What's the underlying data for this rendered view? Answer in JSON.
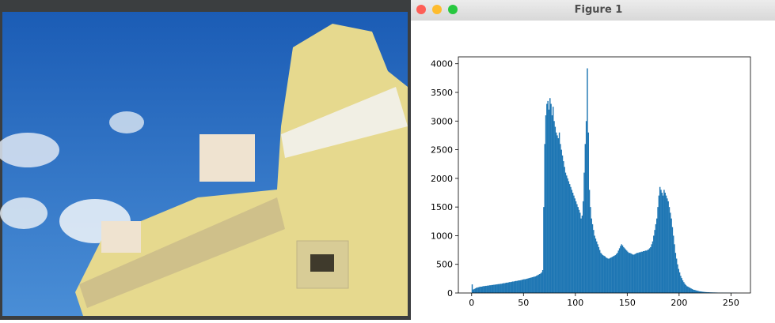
{
  "window": {
    "title": "Figure 1"
  },
  "chart_data": {
    "type": "histogram",
    "color": "#1f77b4",
    "bins": [
      0,
      1,
      2,
      3,
      4,
      5,
      6,
      7,
      8,
      9,
      10,
      11,
      12,
      13,
      14,
      15,
      16,
      17,
      18,
      19,
      20,
      21,
      22,
      23,
      24,
      25,
      26,
      27,
      28,
      29,
      30,
      31,
      32,
      33,
      34,
      35,
      36,
      37,
      38,
      39,
      40,
      41,
      42,
      43,
      44,
      45,
      46,
      47,
      48,
      49,
      50,
      51,
      52,
      53,
      54,
      55,
      56,
      57,
      58,
      59,
      60,
      61,
      62,
      63,
      64,
      65,
      66,
      67,
      68,
      69,
      70,
      71,
      72,
      73,
      74,
      75,
      76,
      77,
      78,
      79,
      80,
      81,
      82,
      83,
      84,
      85,
      86,
      87,
      88,
      89,
      90,
      91,
      92,
      93,
      94,
      95,
      96,
      97,
      98,
      99,
      100,
      101,
      102,
      103,
      104,
      105,
      106,
      107,
      108,
      109,
      110,
      111,
      112,
      113,
      114,
      115,
      116,
      117,
      118,
      119,
      120,
      121,
      122,
      123,
      124,
      125,
      126,
      127,
      128,
      129,
      130,
      131,
      132,
      133,
      134,
      135,
      136,
      137,
      138,
      139,
      140,
      141,
      142,
      143,
      144,
      145,
      146,
      147,
      148,
      149,
      150,
      151,
      152,
      153,
      154,
      155,
      156,
      157,
      158,
      159,
      160,
      161,
      162,
      163,
      164,
      165,
      166,
      167,
      168,
      169,
      170,
      171,
      172,
      173,
      174,
      175,
      176,
      177,
      178,
      179,
      180,
      181,
      182,
      183,
      184,
      185,
      186,
      187,
      188,
      189,
      190,
      191,
      192,
      193,
      194,
      195,
      196,
      197,
      198,
      199,
      200,
      201,
      202,
      203,
      204,
      205,
      206,
      207,
      208,
      209,
      210,
      211,
      212,
      213,
      214,
      215,
      216,
      217,
      218,
      219,
      220,
      221,
      222,
      223,
      224,
      225,
      226,
      227,
      228,
      229,
      230,
      231,
      232,
      233,
      234,
      235,
      236,
      237,
      238,
      239,
      240,
      241,
      242,
      243,
      244,
      245,
      246,
      247,
      248,
      249,
      250,
      251,
      252,
      253,
      254,
      255,
      256
    ],
    "values": [
      150,
      60,
      70,
      80,
      90,
      95,
      100,
      105,
      110,
      110,
      115,
      120,
      120,
      125,
      125,
      130,
      130,
      135,
      135,
      140,
      140,
      145,
      145,
      150,
      150,
      155,
      155,
      160,
      160,
      165,
      170,
      170,
      175,
      180,
      180,
      185,
      190,
      190,
      195,
      200,
      200,
      205,
      210,
      210,
      215,
      220,
      220,
      225,
      230,
      235,
      240,
      240,
      245,
      250,
      255,
      260,
      265,
      270,
      275,
      280,
      285,
      290,
      300,
      310,
      320,
      330,
      340,
      360,
      400,
      1500,
      2600,
      3100,
      3300,
      3350,
      3200,
      3400,
      3300,
      3100,
      3250,
      3000,
      2900,
      2800,
      2750,
      2700,
      2800,
      2600,
      2500,
      2400,
      2300,
      2200,
      2100,
      2050,
      2000,
      1950,
      1900,
      1850,
      1800,
      1750,
      1700,
      1650,
      1600,
      1550,
      1500,
      1450,
      1400,
      1300,
      1350,
      1600,
      2100,
      2600,
      3000,
      3920,
      2800,
      1800,
      1500,
      1300,
      1200,
      1100,
      1000,
      950,
      900,
      850,
      800,
      750,
      700,
      680,
      660,
      650,
      640,
      620,
      610,
      600,
      600,
      610,
      620,
      630,
      640,
      650,
      660,
      680,
      700,
      740,
      780,
      820,
      850,
      830,
      800,
      780,
      760,
      740,
      720,
      700,
      700,
      690,
      680,
      670,
      670,
      680,
      690,
      700,
      700,
      710,
      710,
      720,
      720,
      730,
      730,
      740,
      740,
      750,
      760,
      780,
      800,
      850,
      900,
      1000,
      1100,
      1200,
      1300,
      1500,
      1700,
      1850,
      1800,
      1750,
      1700,
      1800,
      1750,
      1700,
      1650,
      1600,
      1500,
      1400,
      1300,
      1150,
      1000,
      850,
      700,
      600,
      500,
      420,
      360,
      300,
      260,
      220,
      190,
      160,
      140,
      120,
      110,
      100,
      90,
      80,
      70,
      60,
      55,
      50,
      45,
      40,
      35,
      30,
      28,
      25,
      22,
      20,
      18,
      16,
      15,
      14,
      13,
      12,
      11,
      10,
      10,
      9,
      9,
      8,
      8,
      7,
      7,
      6,
      6,
      6,
      5,
      5,
      5,
      5,
      4,
      4,
      4,
      4,
      3,
      3,
      3,
      3,
      3,
      3
    ],
    "xlim": [
      -12.8,
      268.8
    ],
    "ylim": [
      0,
      4120
    ],
    "xticks": [
      0,
      50,
      100,
      150,
      200,
      250
    ],
    "yticks": [
      0,
      500,
      1000,
      1500,
      2000,
      2500,
      3000,
      3500,
      4000
    ]
  }
}
